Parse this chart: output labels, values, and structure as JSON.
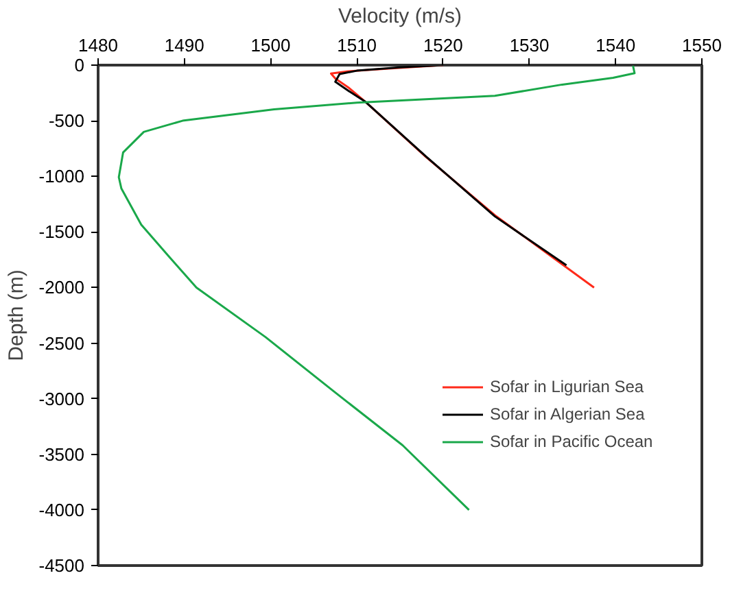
{
  "chart_data": {
    "type": "line",
    "xlabel": "Velocity (m/s)",
    "ylabel": "Depth (m)",
    "xlim": [
      1480,
      1550
    ],
    "xticks": [
      1480,
      1490,
      1500,
      1510,
      1520,
      1530,
      1540,
      1550
    ],
    "ylim": [
      -4500,
      0
    ],
    "yticks": [
      0,
      -500,
      -1000,
      -1500,
      -2000,
      -2500,
      -3000,
      -3500,
      -4000,
      -4500
    ],
    "grid": false,
    "legend": "bottom right",
    "marker": "none",
    "line_style": "solid",
    "series": [
      {
        "name": "Sofar in Ligurian Sea",
        "color": "#ff2a1a",
        "x": [
          1520,
          1514,
          1509,
          1507,
          1507.5,
          1509,
          1511,
          1518,
          1526,
          1537.5
        ],
        "values": [
          0,
          -30,
          -55,
          -75,
          -120,
          -200,
          -330,
          -825,
          -1350,
          -2000
        ]
      },
      {
        "name": "Sofar in Algerian Sea",
        "color": "#000000",
        "x": [
          1520,
          1515,
          1510,
          1508,
          1507.5,
          1509,
          1511,
          1518,
          1526,
          1534.3
        ],
        "values": [
          0,
          -20,
          -50,
          -80,
          -150,
          -230,
          -330,
          -820,
          -1360,
          -1800
        ]
      },
      {
        "name": "Sofar in Pacific Ocean",
        "color": "#1aa84a",
        "x": [
          1542,
          1542.2,
          1539.7,
          1533.8,
          1526,
          1510,
          1500.4,
          1489.8,
          1485.3,
          1482.9,
          1482.4,
          1482.7,
          1485,
          1488.2,
          1491.4,
          1499.4,
          1507.3,
          1515.3,
          1523
        ],
        "values": [
          0,
          -73,
          -114,
          -175,
          -276,
          -337,
          -398,
          -500,
          -600,
          -785,
          -1008,
          -1110,
          -1435,
          -1720,
          -2000,
          -2445,
          -2932,
          -3418,
          -4000
        ]
      }
    ]
  }
}
